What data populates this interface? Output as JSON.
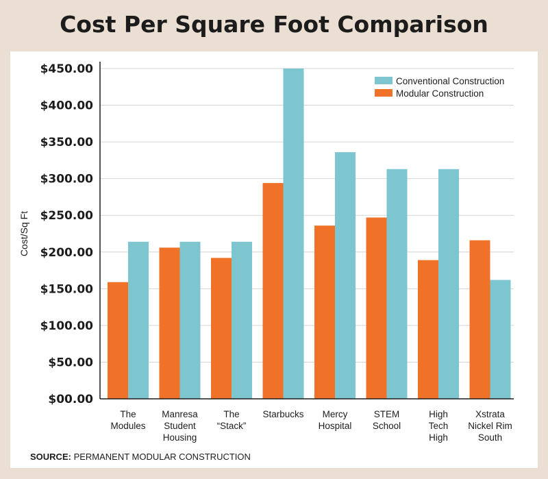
{
  "chart_data": {
    "type": "bar",
    "title": "Cost Per Square Foot Comparison",
    "ylabel": "Cost/Sq Ft",
    "xlabel": "",
    "ylim": [
      0,
      450
    ],
    "yticks": [
      "$00.00",
      "$50.00",
      "$100.00",
      "$150.00",
      "$200.00",
      "$250.00",
      "$300.00",
      "$350.00",
      "$400.00",
      "$450.00"
    ],
    "ytick_values": [
      0,
      50,
      100,
      150,
      200,
      250,
      300,
      350,
      400,
      450
    ],
    "grid": true,
    "legend_position": "top-right",
    "categories": [
      [
        "The",
        "Modules"
      ],
      [
        "Manresa",
        "Student",
        "Housing"
      ],
      [
        "The",
        "“Stack”"
      ],
      [
        "Starbucks"
      ],
      [
        "Mercy",
        "Hospital"
      ],
      [
        "STEM",
        "School"
      ],
      [
        "High",
        "Tech",
        "High"
      ],
      [
        "Xstrata",
        "Nickel Rim",
        "South"
      ]
    ],
    "series": [
      {
        "name": "Modular Construction",
        "color": "#f07128",
        "values": [
          159,
          206,
          192,
          294,
          236,
          247,
          189,
          216
        ]
      },
      {
        "name": "Conventional Construction",
        "color": "#7dc5cf",
        "values": [
          214,
          214,
          214,
          450,
          336,
          313,
          313,
          162
        ]
      }
    ],
    "legend_order": [
      1,
      0
    ]
  },
  "source": {
    "label": "SOURCE:",
    "text": " PERMANENT MODULAR CONSTRUCTION"
  }
}
